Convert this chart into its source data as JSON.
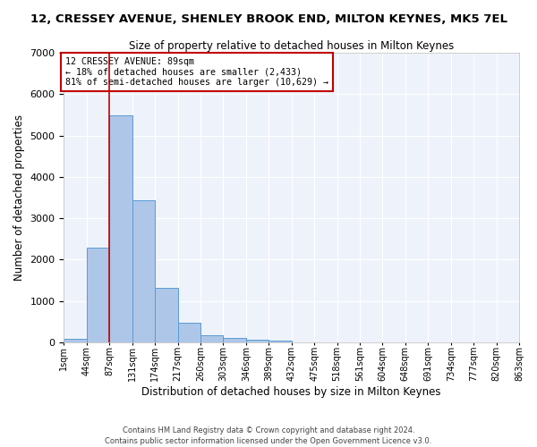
{
  "title": "12, CRESSEY AVENUE, SHENLEY BROOK END, MILTON KEYNES, MK5 7EL",
  "subtitle": "Size of property relative to detached houses in Milton Keynes",
  "xlabel": "Distribution of detached houses by size in Milton Keynes",
  "ylabel": "Number of detached properties",
  "footer_line1": "Contains HM Land Registry data © Crown copyright and database right 2024.",
  "footer_line2": "Contains public sector information licensed under the Open Government Licence v3.0.",
  "annotation_line1": "12 CRESSEY AVENUE: 89sqm",
  "annotation_line2": "← 18% of detached houses are smaller (2,433)",
  "annotation_line3": "81% of semi-detached houses are larger (10,629) →",
  "bar_color": "#aec6e8",
  "bar_edge_color": "#5b9bd5",
  "marker_line_color": "#c00000",
  "background_color": "#eef3fb",
  "grid_color": "#ffffff",
  "bin_labels": [
    "1sqm",
    "44sqm",
    "87sqm",
    "131sqm",
    "174sqm",
    "217sqm",
    "260sqm",
    "303sqm",
    "346sqm",
    "389sqm",
    "432sqm",
    "475sqm",
    "518sqm",
    "561sqm",
    "604sqm",
    "648sqm",
    "691sqm",
    "734sqm",
    "777sqm",
    "820sqm",
    "863sqm"
  ],
  "bar_heights": [
    75,
    2280,
    5480,
    3440,
    1310,
    470,
    165,
    100,
    60,
    30,
    0,
    0,
    0,
    0,
    0,
    0,
    0,
    0,
    0,
    0
  ],
  "ylim": [
    0,
    7000
  ],
  "yticks": [
    0,
    1000,
    2000,
    3000,
    4000,
    5000,
    6000,
    7000
  ],
  "marker_bin_index": 2,
  "n_bins": 20,
  "figsize": [
    6.0,
    5.0
  ],
  "dpi": 100
}
